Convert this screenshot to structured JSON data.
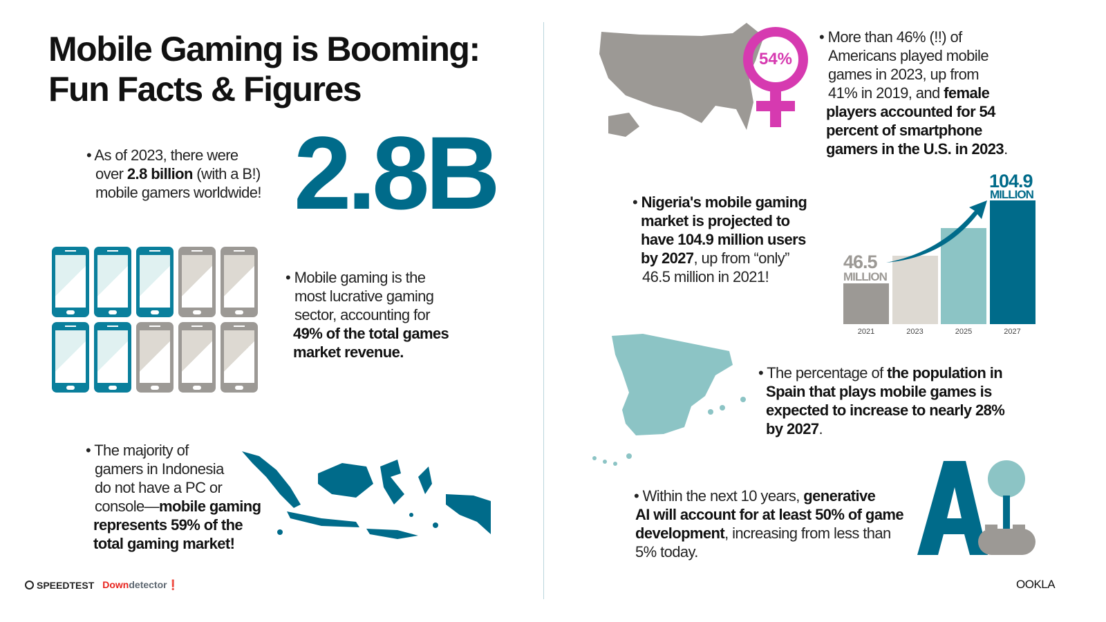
{
  "title": [
    "Mobile Gaming is Booming:",
    "Fun Facts & Figures"
  ],
  "fact_gamers": {
    "line1": "As of 2023, there were",
    "pre": "over ",
    "bold": "2.8 billion",
    "post": " (with a B!)",
    "line3": "mobile gamers worldwide!",
    "big_number": "2.8B"
  },
  "fact_revenue": {
    "l1": "Mobile gaming is the",
    "l2": "most lucrative gaming",
    "l3": "sector, accounting for",
    "b1": "49% of the total games",
    "b2": "market revenue.",
    "phones_filled": 5,
    "phones_total": 10
  },
  "fact_indonesia": {
    "l1": "The majority of",
    "l2": "gamers in Indonesia",
    "l3": "do not have a PC or",
    "l4pre": "console—",
    "l4b": "mobile gaming",
    "b2": "represents 59% of the",
    "b3": "total gaming market!"
  },
  "fact_us": {
    "badge": "54%",
    "l1": "More than 46% (!!) of",
    "l2": "Americans played mobile",
    "l3": "games in 2023, up from",
    "l4pre": "41% in 2019, and ",
    "l4b": "female",
    "b1": "players accounted for 54",
    "b2": "percent of smartphone",
    "b3": "gamers in the U.S. in 2023",
    "end": "."
  },
  "fact_nigeria": {
    "b1": "Nigeria's mobile gaming",
    "b2": "market is projected to",
    "b3": "have 104.9 million users",
    "b4": "by 2027",
    "l4post": ", up from “only”",
    "l5": "46.5 million in 2021!"
  },
  "chart_data": {
    "type": "bar",
    "categories": [
      "2021",
      "2023",
      "2025",
      "2027"
    ],
    "values": [
      46.5,
      66,
      85.5,
      104.9
    ],
    "labels": {
      "first_value": "46.5",
      "first_unit": "MILLION",
      "last_value": "104.9",
      "last_unit": "MILLION"
    },
    "colors": [
      "#9c9995",
      "#ddd9d2",
      "#8cc4c5",
      "#006b8a"
    ]
  },
  "fact_spain": {
    "pre": "The percentage of ",
    "b1": "the population in",
    "b2": "Spain that plays mobile games is",
    "b3": "expected to increase to nearly 28%",
    "b4": "by 2027",
    "end": "."
  },
  "fact_ai": {
    "pre": "Within the next 10 years, ",
    "b0": "generative",
    "b1": "AI will account for at least 50% of game",
    "b2": "development",
    "post": ", increasing from less than",
    "l4": "5% today.",
    "logo_text": "AI"
  },
  "footer": {
    "speedtest": "SPEEDTEST",
    "down": "Down",
    "detector": "detector",
    "ookla": "OOKLA"
  },
  "colors": {
    "teal": "#006b8a",
    "light_teal": "#8cc4c5",
    "gray": "#9c9995",
    "magenta": "#d63ab0",
    "red": "#e8231d"
  }
}
